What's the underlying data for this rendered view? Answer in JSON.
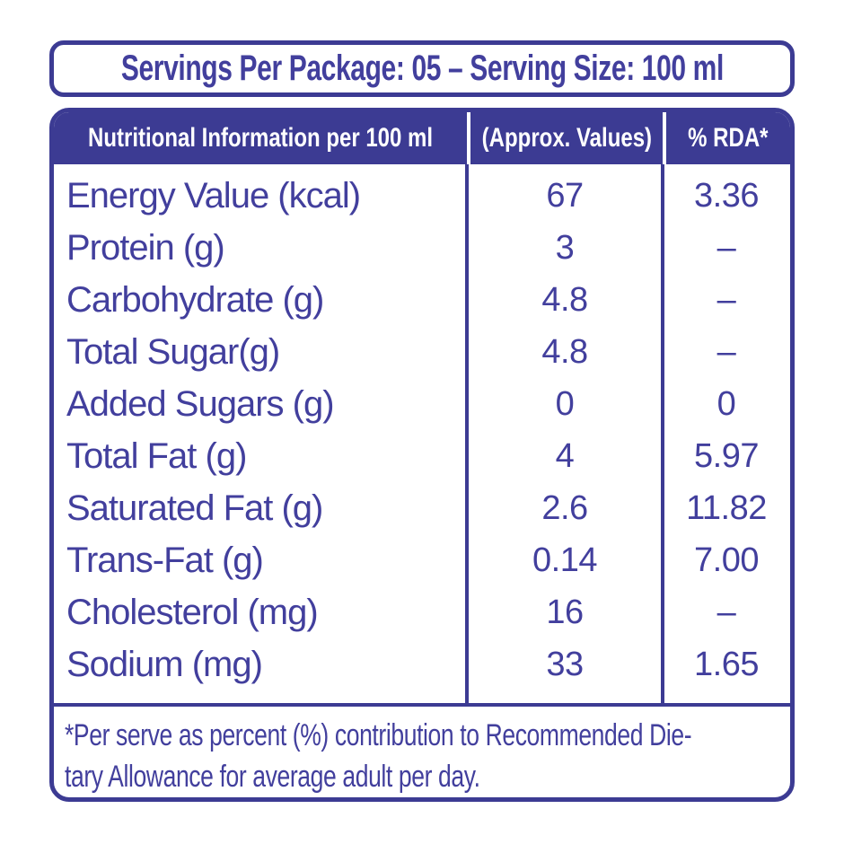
{
  "colors": {
    "ink": "#3c3b93",
    "text": "#423f9d",
    "header_text": "#ffffff",
    "background": "#ffffff"
  },
  "servings_header": {
    "text": "Servings Per Package: 05 – Serving Size: 100 ml"
  },
  "table": {
    "columns": [
      "Nutritional Information per 100 ml",
      "(Approx. Values)",
      "% RDA*"
    ],
    "rows": [
      {
        "label": "Energy Value (kcal)",
        "value": "67",
        "rda": "3.36"
      },
      {
        "label": "Protein (g)",
        "value": "3",
        "rda": "–"
      },
      {
        "label": "Carbohydrate (g)",
        "value": "4.8",
        "rda": "–"
      },
      {
        "label": "Total Sugar(g)",
        "value": "4.8",
        "rda": "–"
      },
      {
        "label": "Added Sugars (g)",
        "value": "0",
        "rda": "0"
      },
      {
        "label": "Total Fat (g)",
        "value": "4",
        "rda": "5.97"
      },
      {
        "label": "Saturated Fat (g)",
        "value": "2.6",
        "rda": "11.82"
      },
      {
        "label": "Trans-Fat (g)",
        "value": "0.14",
        "rda": "7.00"
      },
      {
        "label": "Cholesterol (mg)",
        "value": "16",
        "rda": "–"
      },
      {
        "label": "Sodium (mg)",
        "value": "33",
        "rda": "1.65"
      }
    ]
  },
  "footnote": {
    "line1": "*Per serve as percent (%) contribution to Recommended Die-",
    "line2": "tary Allowance for average adult per day."
  }
}
